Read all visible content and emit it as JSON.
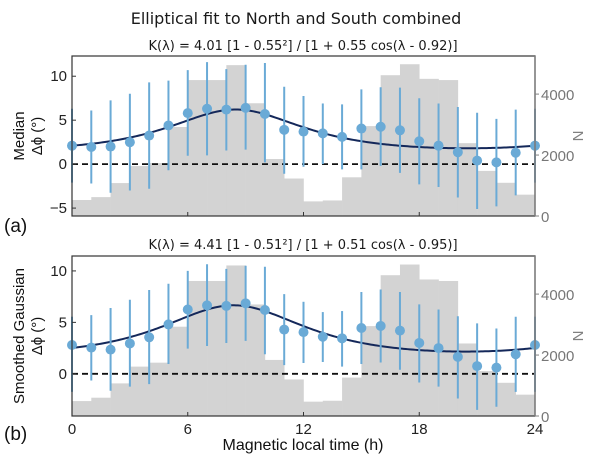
{
  "figure_title": "Elliptical fit to North and South combined",
  "xlabel": "Magnetic local time (h)",
  "colors": {
    "points": "#6aaad6",
    "fit": "#14285a",
    "hist": "#d3d3d3",
    "zero_line": "#111111",
    "right_axis": "#808080"
  },
  "chart_data": [
    {
      "type": "scatter",
      "panel_label": "(a)",
      "title": "K(λ) = 4.01 [1 - 0.55²] / [1 + 0.55 cos(λ - 0.92)]",
      "ylabel_line1": "Median",
      "ylabel_line2": "Δϕ (°)",
      "y2label": "N",
      "xlim": [
        0,
        24
      ],
      "ylim": [
        -5.9,
        12.3
      ],
      "y2lim": [
        0,
        5250
      ],
      "xticks": [
        "0",
        "6",
        "12",
        "18",
        "24"
      ],
      "xtick_values": [
        0,
        6,
        12,
        18,
        24
      ],
      "yticks": [
        "−5",
        "0",
        "5",
        "10"
      ],
      "ytick_values": [
        -5,
        0,
        5,
        10
      ],
      "y2ticks": [
        "0",
        "2000",
        "4000"
      ],
      "y2tick_values": [
        0,
        2000,
        4000
      ],
      "fit": {
        "A": 4.01,
        "e": 0.55,
        "phi": 0.92
      },
      "x": [
        0,
        1,
        2,
        3,
        4,
        5,
        6,
        7,
        8,
        9,
        10,
        11,
        12,
        13,
        14,
        15,
        16,
        17,
        18,
        19,
        20,
        21,
        22,
        23,
        24
      ],
      "y": [
        2.1,
        1.95,
        2.0,
        2.5,
        3.25,
        4.4,
        5.8,
        6.3,
        6.2,
        6.4,
        5.7,
        3.9,
        3.7,
        3.5,
        3.1,
        4.05,
        4.25,
        3.85,
        2.6,
        2.1,
        1.35,
        0.4,
        0.2,
        1.3,
        2.1
      ],
      "err_upper": [
        6.3,
        6.1,
        7.25,
        8.0,
        9.3,
        9.5,
        10.7,
        11.6,
        10.8,
        11.3,
        11.5,
        8.8,
        7.75,
        6.9,
        6.8,
        8.5,
        8.75,
        8.7,
        7.5,
        6.9,
        6.5,
        5.85,
        5.15,
        6.2,
        6.3
      ],
      "err_lower": [
        -2.1,
        -2.2,
        -3.25,
        -3.0,
        -2.8,
        -0.7,
        0.95,
        1.0,
        1.55,
        1.65,
        0.2,
        -1.1,
        -0.3,
        0.0,
        -0.6,
        -0.6,
        -0.2,
        -1.0,
        -2.3,
        -2.6,
        -3.8,
        -5.1,
        -4.8,
        -3.55,
        -2.1
      ],
      "hist_N": [
        525,
        620,
        1080,
        1640,
        1740,
        2920,
        4460,
        4460,
        4950,
        3700,
        1870,
        1230,
        480,
        510,
        1270,
        2950,
        4620,
        4980,
        4500,
        4460,
        2390,
        1480,
        1090,
        700
      ]
    },
    {
      "type": "scatter",
      "panel_label": "(b)",
      "title": "K(λ) = 4.41 [1 - 0.51²] / [1 + 0.51 cos(λ - 0.95)]",
      "ylabel_line1": "Smoothed Gaussian",
      "ylabel_line2": "Δϕ (°)",
      "y2label": "N",
      "xlim": [
        0,
        24
      ],
      "ylim": [
        -4.1,
        11.45
      ],
      "y2lim": [
        0,
        5250
      ],
      "xticks": [
        "0",
        "6",
        "12",
        "18",
        "24"
      ],
      "xtick_values": [
        0,
        6,
        12,
        18,
        24
      ],
      "yticks": [
        "0",
        "5",
        "10"
      ],
      "ytick_values": [
        0,
        5,
        10
      ],
      "y2ticks": [
        "0",
        "2000",
        "4000"
      ],
      "y2tick_values": [
        0,
        2000,
        4000
      ],
      "fit": {
        "A": 4.41,
        "e": 0.51,
        "phi": 0.95
      },
      "x": [
        0,
        1,
        2,
        3,
        4,
        5,
        6,
        7,
        8,
        9,
        10,
        11,
        12,
        13,
        14,
        15,
        16,
        17,
        18,
        19,
        20,
        21,
        22,
        23,
        24
      ],
      "y": [
        2.8,
        2.55,
        2.35,
        2.95,
        3.55,
        4.8,
        6.25,
        6.65,
        6.6,
        6.85,
        6.2,
        4.3,
        4.05,
        3.6,
        3.45,
        4.45,
        4.65,
        4.2,
        3.0,
        2.5,
        1.65,
        0.75,
        0.6,
        1.9,
        2.8
      ],
      "err_upper": [
        5.55,
        5.7,
        6.4,
        7.2,
        8.15,
        8.75,
        10.0,
        10.65,
        10.2,
        10.5,
        10.4,
        7.75,
        7.0,
        6.0,
        6.1,
        7.95,
        8.2,
        7.95,
        6.75,
        6.25,
        5.6,
        4.9,
        4.4,
        5.55,
        5.55
      ],
      "err_lower": [
        -1.75,
        -0.65,
        -1.65,
        -1.25,
        -1.0,
        0.95,
        2.45,
        2.7,
        3.0,
        3.2,
        1.9,
        0.85,
        1.05,
        1.15,
        0.7,
        0.95,
        1.1,
        0.4,
        -0.85,
        -1.25,
        -2.4,
        -3.5,
        -3.2,
        -1.75,
        -1.75
      ],
      "hist_N": [
        490,
        600,
        1070,
        1620,
        1750,
        2930,
        4430,
        4430,
        4940,
        3660,
        1840,
        1200,
        470,
        500,
        1260,
        2950,
        4620,
        4970,
        4480,
        4430,
        2380,
        1475,
        1090,
        700
      ]
    }
  ]
}
